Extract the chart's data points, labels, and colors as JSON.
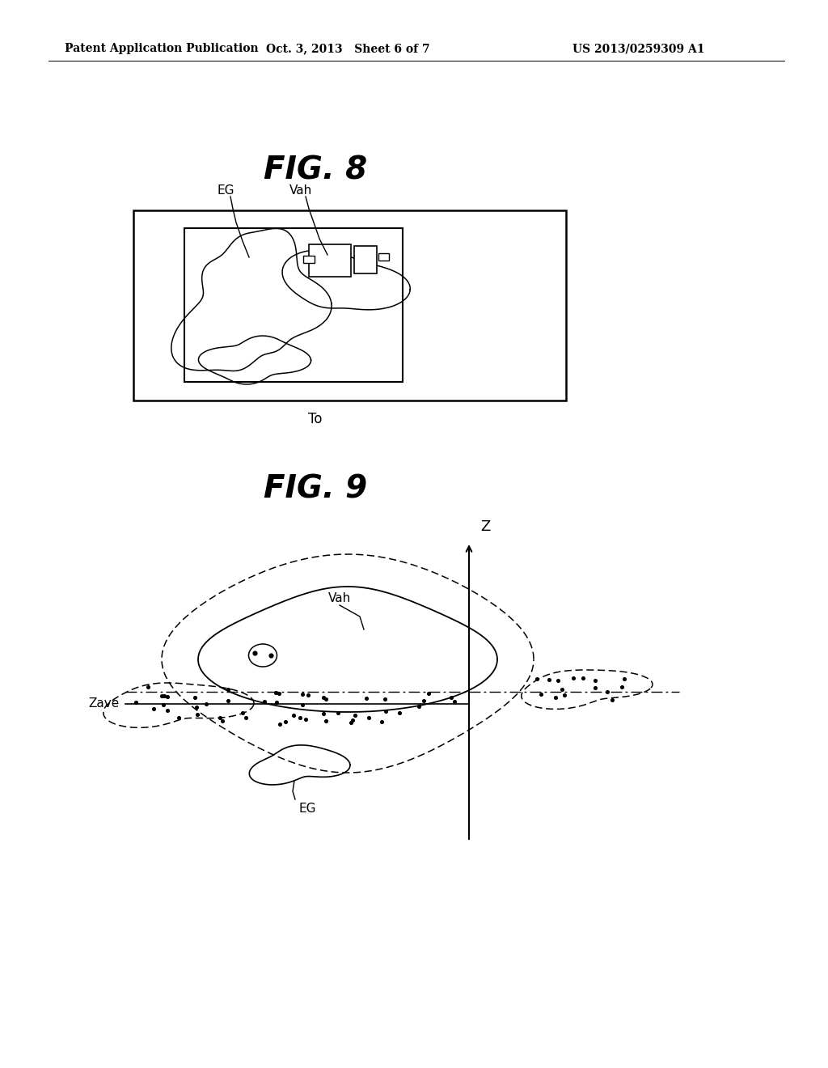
{
  "bg_color": "#ffffff",
  "text_color": "#000000",
  "header_left": "Patent Application Publication",
  "header_mid": "Oct. 3, 2013   Sheet 6 of 7",
  "header_right": "US 2013/0259309 A1",
  "fig8_title": "FIG. 8",
  "fig9_title": "FIG. 9",
  "fig8_label_EG": "EG",
  "fig8_label_Vah": "Vah",
  "fig8_label_To": "To",
  "fig9_label_Z": "Z",
  "fig9_label_Vah": "Vah",
  "fig9_label_EG": "EG",
  "fig9_label_Zave": "Zave"
}
